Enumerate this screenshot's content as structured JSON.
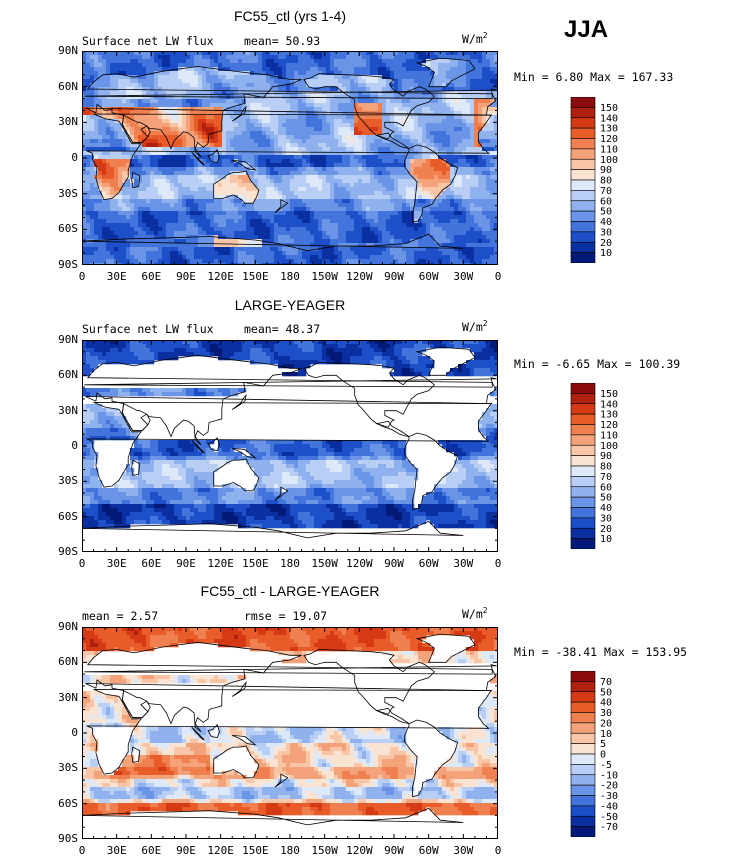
{
  "season": "JJA",
  "x_ticks": [
    "0",
    "30E",
    "60E",
    "90E",
    "120E",
    "150E",
    "180",
    "150W",
    "120W",
    "90W",
    "60W",
    "30W",
    "0"
  ],
  "y_ticks": [
    "90N",
    "60N",
    "30N",
    "0",
    "30S",
    "60S",
    "90S"
  ],
  "panels": [
    {
      "title": "FC55_ctl (yrs 1-4)",
      "left_label": "Surface net LW flux",
      "center_label": "mean=  50.93",
      "units": "W/m",
      "units_sup": "2",
      "minmax": "Min =   6.80 Max = 167.33",
      "colorbar": {
        "labels": [
          "150",
          "140",
          "130",
          "120",
          "110",
          "100",
          "90",
          "80",
          "70",
          "60",
          "50",
          "40",
          "30",
          "20",
          "10"
        ],
        "colors": [
          "#8a0c0c",
          "#b0200f",
          "#d53a14",
          "#e85c2a",
          "#f08050",
          "#f4a27a",
          "#f8c6a6",
          "#fbe3d2",
          "#dde8f8",
          "#b8cef4",
          "#8fb2ee",
          "#6a94e6",
          "#4274dc",
          "#1d4fc8",
          "#0a2fa0",
          "#031a78"
        ]
      },
      "map_type": "ctl"
    },
    {
      "title": "LARGE-YEAGER",
      "left_label": "Surface net LW flux",
      "center_label": "mean=  48.37",
      "units": "W/m",
      "units_sup": "2",
      "minmax": "Min =  -6.65 Max = 100.39",
      "colorbar": {
        "labels": [
          "150",
          "140",
          "130",
          "120",
          "110",
          "100",
          "90",
          "80",
          "70",
          "60",
          "50",
          "40",
          "30",
          "20",
          "10"
        ],
        "colors": [
          "#8a0c0c",
          "#b0200f",
          "#d53a14",
          "#e85c2a",
          "#f08050",
          "#f4a27a",
          "#f8c6a6",
          "#fbe3d2",
          "#dde8f8",
          "#b8cef4",
          "#8fb2ee",
          "#6a94e6",
          "#4274dc",
          "#1d4fc8",
          "#0a2fa0",
          "#031a78"
        ]
      },
      "map_type": "obs"
    },
    {
      "title": "FC55_ctl - LARGE-YEAGER",
      "left_label": "mean =    2.57",
      "center_label": "rmse =   19.07",
      "units": "W/m",
      "units_sup": "2",
      "minmax": "Min = -38.41 Max = 153.95",
      "colorbar": {
        "labels": [
          "70",
          "50",
          "40",
          "30",
          "20",
          "10",
          "5",
          "0",
          "-5",
          "-10",
          "-20",
          "-30",
          "-40",
          "-50",
          "-70"
        ],
        "colors": [
          "#8a0c0c",
          "#b0200f",
          "#d53a14",
          "#e85c2a",
          "#f08050",
          "#f4a27a",
          "#f8c6a6",
          "#fbe3d2",
          "#dde8f8",
          "#b8cef4",
          "#8fb2ee",
          "#6a94e6",
          "#4274dc",
          "#1d4fc8",
          "#0a2fa0",
          "#031a78"
        ]
      },
      "map_type": "diff"
    }
  ]
}
